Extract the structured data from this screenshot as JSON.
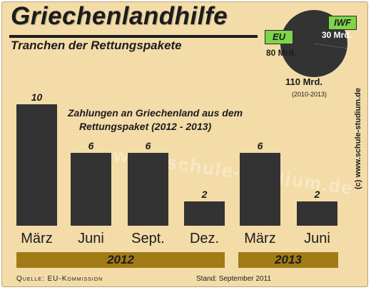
{
  "header": {
    "title": "Griechenlandhilfe",
    "subtitle": "Tranchen der Rettungspakete"
  },
  "note": {
    "line1": "Zahlungen an Griechenland aus dem",
    "line2": "Rettungspaket (2012  - 2013)"
  },
  "watermark": "www.schule-studium.de",
  "credit": "(c) www.schule-studium.de",
  "pie": {
    "total_label": "110 Mrd.",
    "period": "(2010-2013)",
    "slices": [
      {
        "name": "EU",
        "value_label": "80 Mrd.",
        "value": 80,
        "color": "#333333"
      },
      {
        "name": "IWF",
        "value_label": "30 Mrd.",
        "value": 30,
        "color": "#333333"
      }
    ]
  },
  "chart_data": {
    "type": "bar",
    "title": "Zahlungen an Griechenland aus dem Rettungspaket (2012  - 2013)",
    "categories": [
      "März",
      "Juni",
      "Sept.",
      "Dez.",
      "März",
      "Juni"
    ],
    "values": [
      10,
      6,
      6,
      2,
      6,
      2
    ],
    "groups": [
      {
        "label": "2012",
        "count": 4
      },
      {
        "label": "2013",
        "count": 2
      }
    ],
    "ylim": [
      0,
      10
    ],
    "bar_color": "#333333",
    "grid": false
  },
  "footer": {
    "source": "Quelle: EU-Kommission",
    "stand": "Stand: September 2011"
  },
  "colors": {
    "background": "#f3dca8",
    "bar": "#333333",
    "year_bar": "#a07b16",
    "legend_green": "#7fd44a"
  }
}
